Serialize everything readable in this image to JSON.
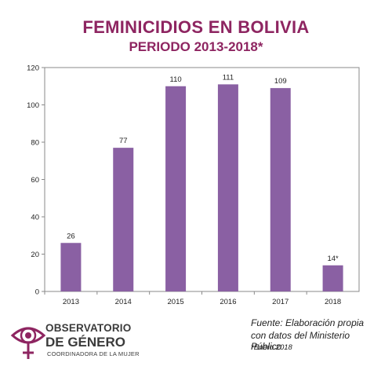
{
  "chart_data": {
    "type": "bar",
    "title": "FEMINICIDIOS EN BOLIVIA",
    "subtitle": "PERIODO 2013-2018*",
    "categories": [
      "2013",
      "2014",
      "2015",
      "2016",
      "2017",
      "2018"
    ],
    "values": [
      26,
      77,
      110,
      111,
      109,
      14
    ],
    "data_labels": [
      "26",
      "77",
      "110",
      "111",
      "109",
      "14*"
    ],
    "ylim": [
      0,
      120
    ],
    "yticks": [
      0,
      20,
      40,
      60,
      80,
      100,
      120
    ],
    "xlabel": "",
    "ylabel": "",
    "grid": false,
    "legend": "none",
    "bar_color": "#8a60a3",
    "title_color": "#8e2561"
  },
  "logo": {
    "line1": "OBSERVATORIO",
    "line2": "DE GÉNERO",
    "line3": "COORDINADORA DE LA MUJER",
    "color": "#8e2561"
  },
  "source": {
    "line1": "Fuente: Elaboración propia",
    "line2": "con datos del Ministerio Público",
    "line3": "*Enero 2018"
  }
}
